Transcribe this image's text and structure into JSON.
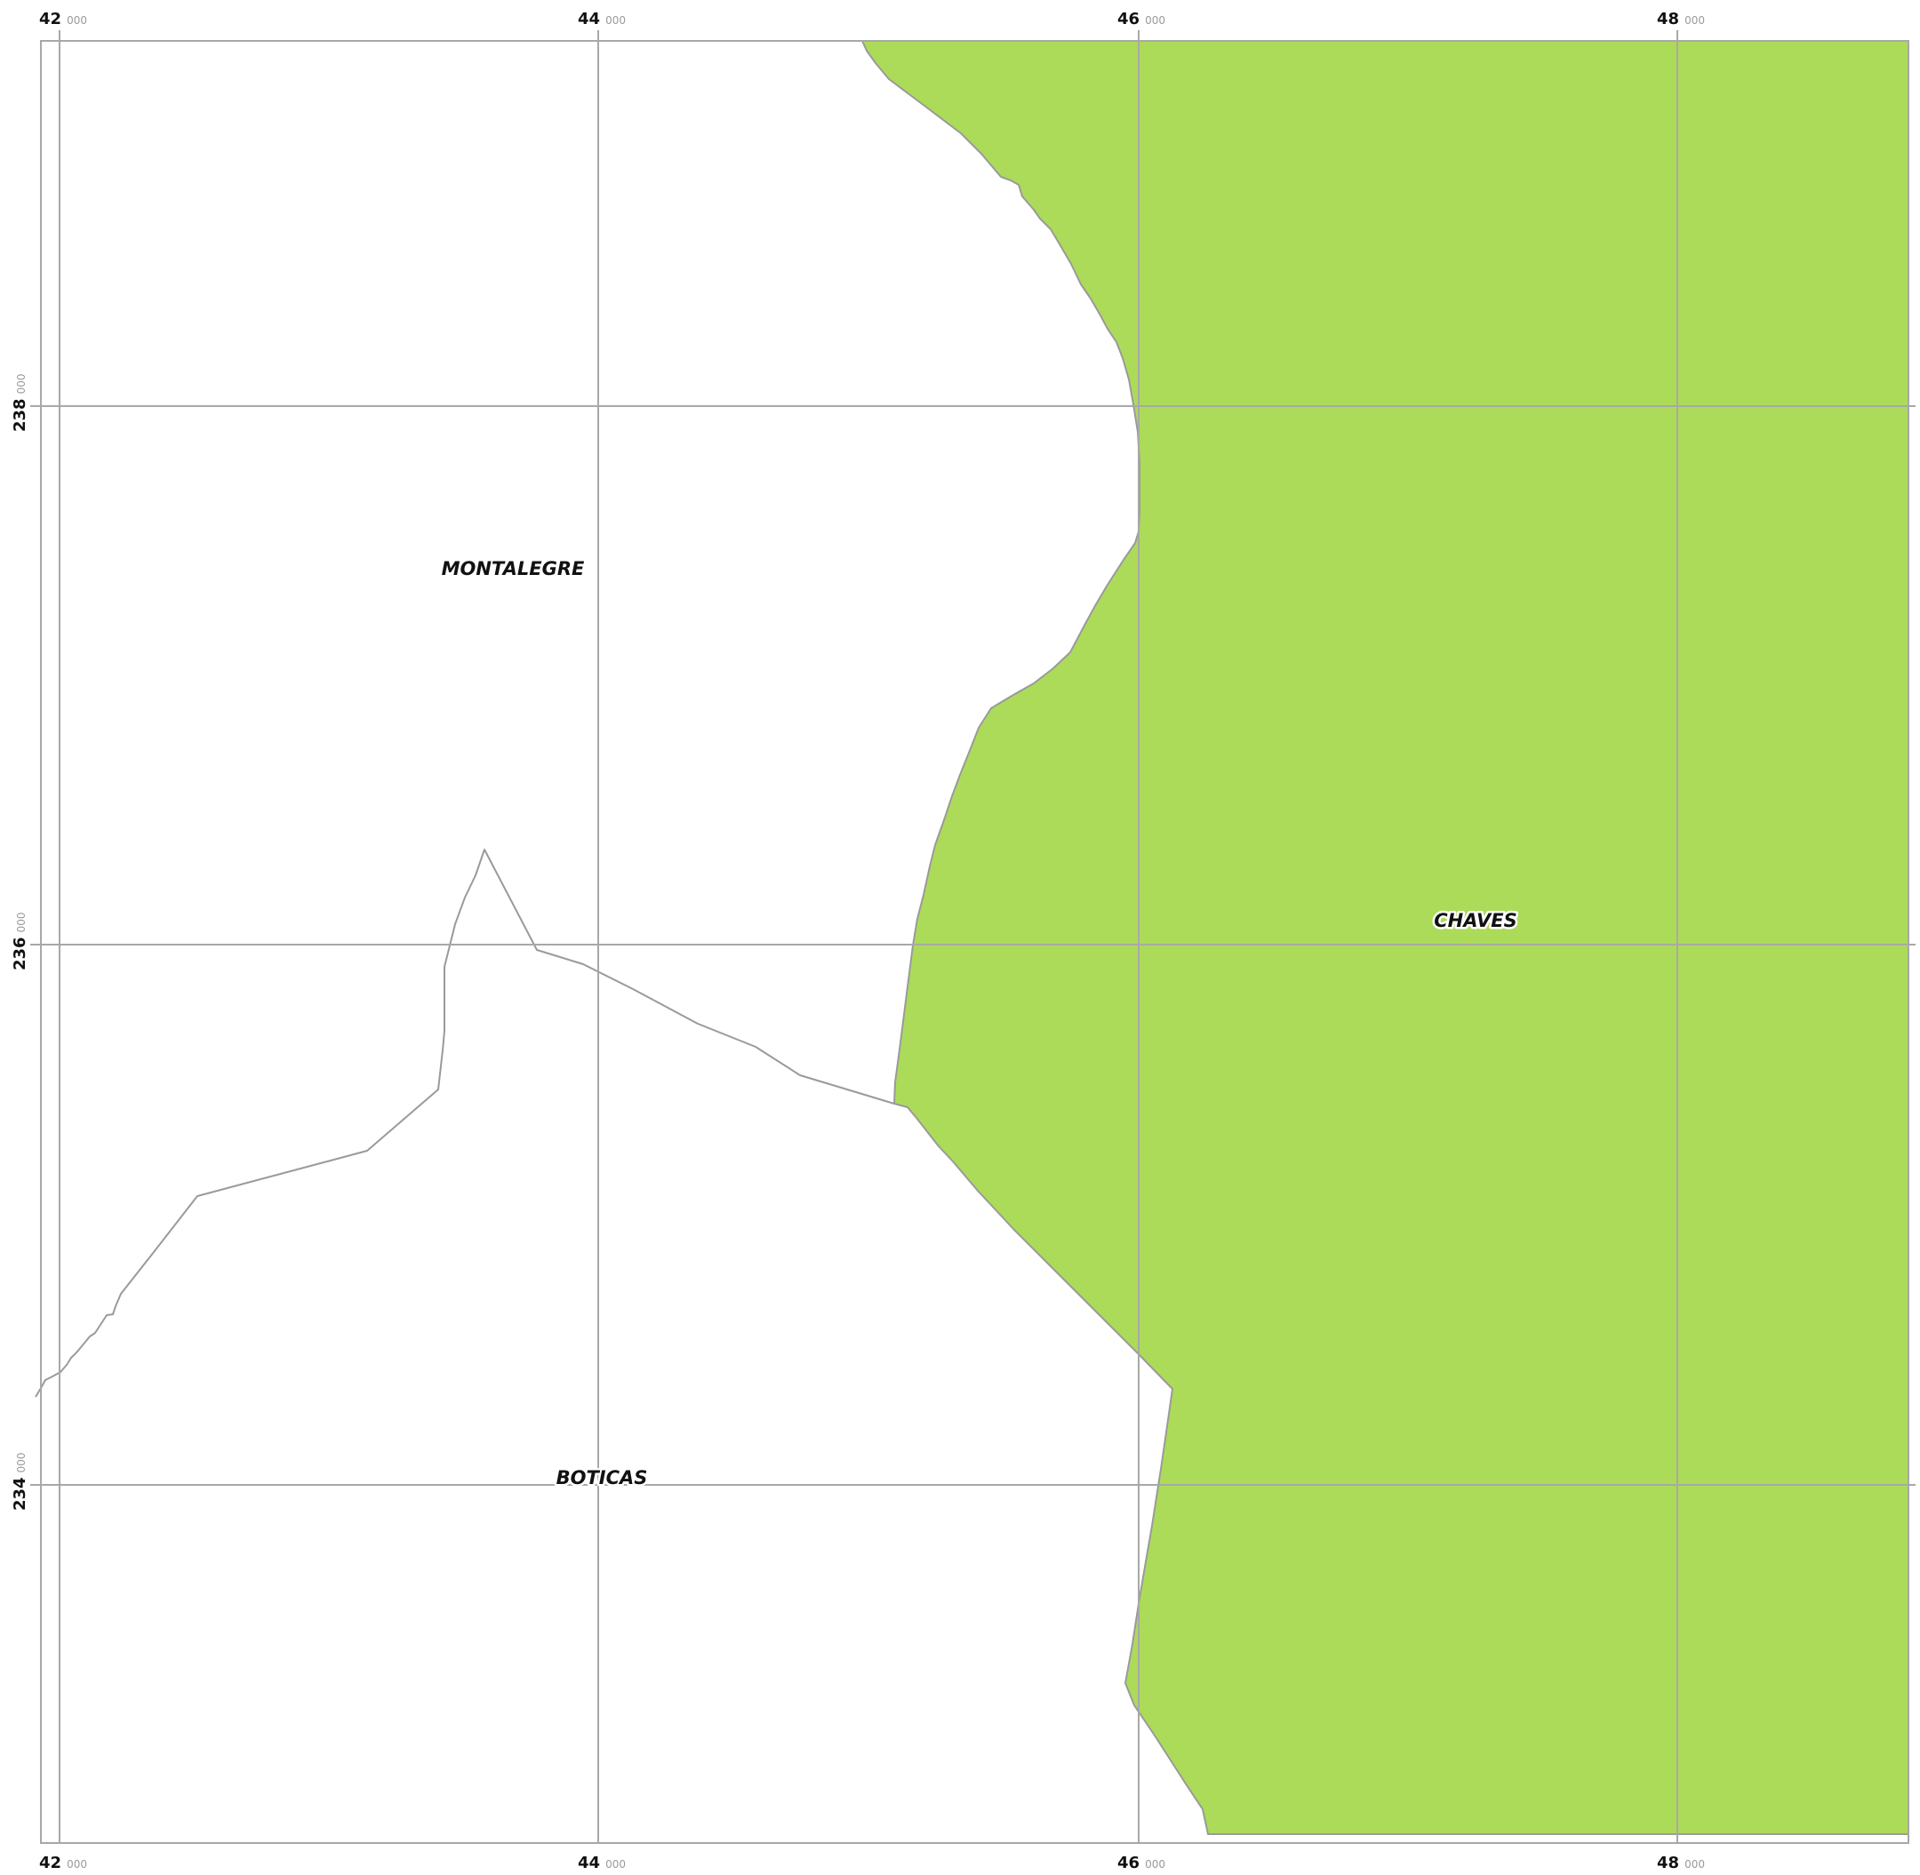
{
  "map": {
    "colors": {
      "chaves_fill": "#acdb59",
      "grid": "#a8a8a8",
      "boundary": "#9a9a9a",
      "background": "#ffffff"
    },
    "x_ticks": [
      {
        "major": "42",
        "minor": "000"
      },
      {
        "major": "44",
        "minor": "000"
      },
      {
        "major": "46",
        "minor": "000"
      },
      {
        "major": "48",
        "minor": "000"
      }
    ],
    "y_ticks": [
      {
        "major": "238",
        "minor": "000"
      },
      {
        "major": "236",
        "minor": "000"
      },
      {
        "major": "234",
        "minor": "000"
      }
    ],
    "labels": {
      "montalegre": "MONTALEGRE",
      "chaves": "CHAVES",
      "boticas": "BOTICAS"
    }
  }
}
